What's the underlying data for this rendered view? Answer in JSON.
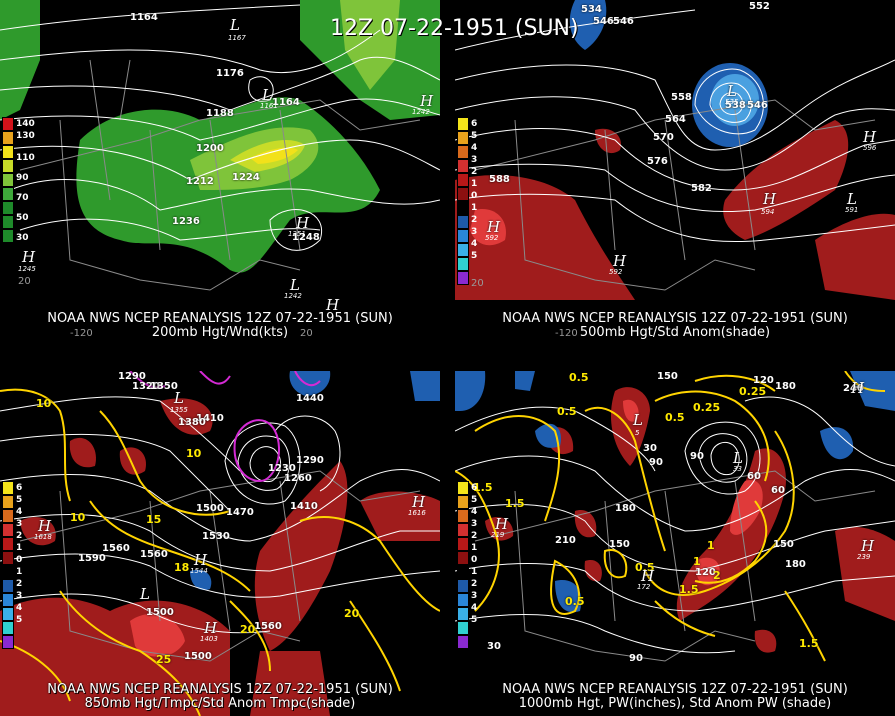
{
  "main_title": "12Z 07-22-1951 (SUN)",
  "panels": {
    "p200": {
      "caption1": "NOAA NWS NCEP REANALYSIS 12Z 07-22-1951 (SUN)",
      "caption2": "200mb Hgt/Wnd(kts)",
      "legend": [
        "140",
        "130",
        "110",
        "90",
        "70",
        "50",
        "30"
      ],
      "legend_colors": [
        "#d2121a",
        "#e8a21c",
        "#f2e11a",
        "#c7dc28",
        "#7fc43a",
        "#3ea83a",
        "#1e8a2a"
      ],
      "labels": [
        "1164",
        "1176",
        "1188",
        "1200",
        "1212",
        "1224",
        "1236",
        "1248",
        "1164"
      ],
      "centers": [
        {
          "t": "L",
          "v": "1167"
        },
        {
          "t": "L",
          "v": "1161"
        },
        {
          "t": "H",
          "v": "1242"
        },
        {
          "t": "H",
          "v": "1251"
        },
        {
          "t": "L",
          "v": "1242"
        },
        {
          "t": "H",
          "v": "1245"
        },
        {
          "t": "H",
          "v": ""
        }
      ],
      "lon": [
        "-120",
        "20",
        "20"
      ]
    },
    "p500": {
      "caption1": "NOAA NWS NCEP REANALYSIS 12Z 07-22-1951 (SUN)",
      "caption2": "500mb Hgt/Std Anom(shade)",
      "legend": [
        "6",
        "5",
        "4",
        "3",
        "2",
        "1",
        "0",
        "1",
        "2",
        "3",
        "4",
        "5"
      ],
      "legend_colors": [
        "#f4e41a",
        "#e8a21c",
        "#d96a1c",
        "#d23030",
        "#b81818",
        "#8c1010",
        "#000000",
        "#1e5aa8",
        "#2a86d8",
        "#3ab0e8",
        "#30d0d0",
        "#8a2ad0"
      ],
      "labels": [
        "534",
        "546",
        "546",
        "552",
        "558",
        "564",
        "570",
        "576",
        "582",
        "588",
        "538",
        "546"
      ],
      "centers": [
        {
          "t": "L",
          "v": "535"
        },
        {
          "t": "H",
          "v": "596"
        },
        {
          "t": "L",
          "v": "591"
        },
        {
          "t": "H",
          "v": "594"
        },
        {
          "t": "H",
          "v": "592"
        },
        {
          "t": "H",
          "v": "592"
        }
      ],
      "lon": [
        "-120",
        "20"
      ]
    },
    "p850": {
      "caption1": "NOAA NWS NCEP REANALYSIS 12Z 07-22-1951 (SUN)",
      "caption2": "850mb Hgt/Tmpc/Std Anom Tmpc(shade)",
      "legend": [
        "6",
        "5",
        "4",
        "3",
        "2",
        "1",
        "0",
        "1",
        "2",
        "3",
        "4",
        "5"
      ],
      "labels": [
        "1290",
        "1320",
        "1350",
        "1410",
        "1440",
        "1380",
        "1290",
        "1470",
        "1500",
        "1530",
        "1560",
        "1590",
        "1560",
        "1500",
        "1500",
        "1410",
        "1560",
        "1230",
        "1260"
      ],
      "yellow": [
        "10",
        "10",
        "15",
        "10",
        "18",
        "20",
        "25",
        "20"
      ],
      "centers": [
        {
          "t": "H",
          "v": "1618"
        },
        {
          "t": "H",
          "v": "1616"
        },
        {
          "t": "L",
          "v": "1355"
        },
        {
          "t": "L",
          "v": "1500"
        },
        {
          "t": "H",
          "v": "1544"
        },
        {
          "t": "H",
          "v": "1403"
        }
      ]
    },
    "p1000": {
      "caption1": "NOAA NWS NCEP REANALYSIS 12Z 07-22-1951 (SUN)",
      "caption2": "1000mb Hgt, PW(inches), Std Anom PW (shade)",
      "legend": [
        "6",
        "5",
        "4",
        "3",
        "2",
        "1",
        "0",
        "1",
        "2",
        "3",
        "4",
        "5"
      ],
      "labels": [
        "150",
        "120",
        "180",
        "240",
        "90",
        "30",
        "60",
        "90",
        "180",
        "210",
        "150",
        "150",
        "120",
        "180",
        "90",
        "30",
        "60"
      ],
      "yellow": [
        "0.5",
        "0.5",
        "0.5",
        "0.25",
        "1.5",
        "1.5",
        "1",
        "0.5",
        "1.5",
        "1",
        "2",
        "0.5",
        "1.5",
        "0.25"
      ],
      "centers": [
        {
          "t": "L",
          "v": "5"
        },
        {
          "t": "L",
          "v": "33"
        },
        {
          "t": "H",
          "v": "239"
        },
        {
          "t": "H",
          "v": "219"
        },
        {
          "t": "H",
          "v": "172"
        },
        {
          "t": "H",
          "v": ""
        }
      ]
    }
  },
  "colors": {
    "red": "#a01c1c",
    "redlight": "#e03a3a",
    "blue": "#1f5fb0",
    "lightblue": "#4aa0e0",
    "green": "#2f9a2c",
    "yellowgreen": "#c8dc28",
    "magenta": "#d42ad4",
    "contour": "#ffffff",
    "pw": "#ffd400",
    "border": "#9a9a9a"
  }
}
